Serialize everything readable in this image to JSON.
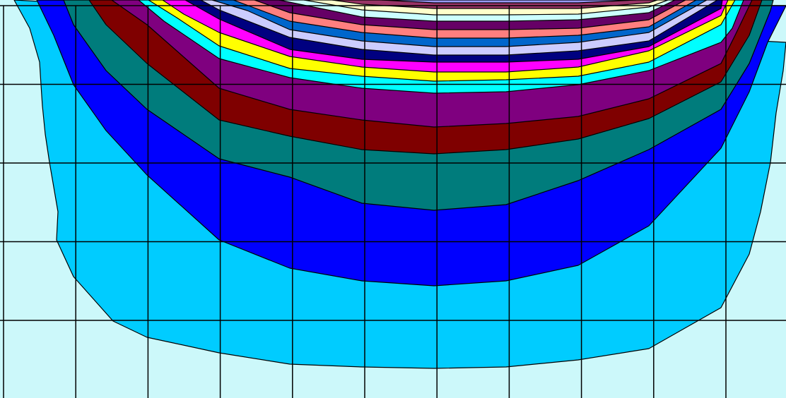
{
  "chart_data": {
    "type": "heatmap",
    "title": "",
    "xlabel": "",
    "ylabel": "",
    "grid": true,
    "legend": "none",
    "x_columns": 11,
    "y_rows": 5,
    "band_colors": [
      "#ccf8fa",
      "#00ccff",
      "#0000ff",
      "#007c7c",
      "#7f0000",
      "#7f007f",
      "#00ffff",
      "#ffff00",
      "#ff00ff",
      "#000080",
      "#ccccff",
      "#0066cc",
      "#ff7f7f",
      "#660066",
      "#ccffff",
      "#ffffcc",
      "#993366",
      "#9999ff"
    ],
    "grid_color": "#000000",
    "edge_color": "#000000"
  }
}
